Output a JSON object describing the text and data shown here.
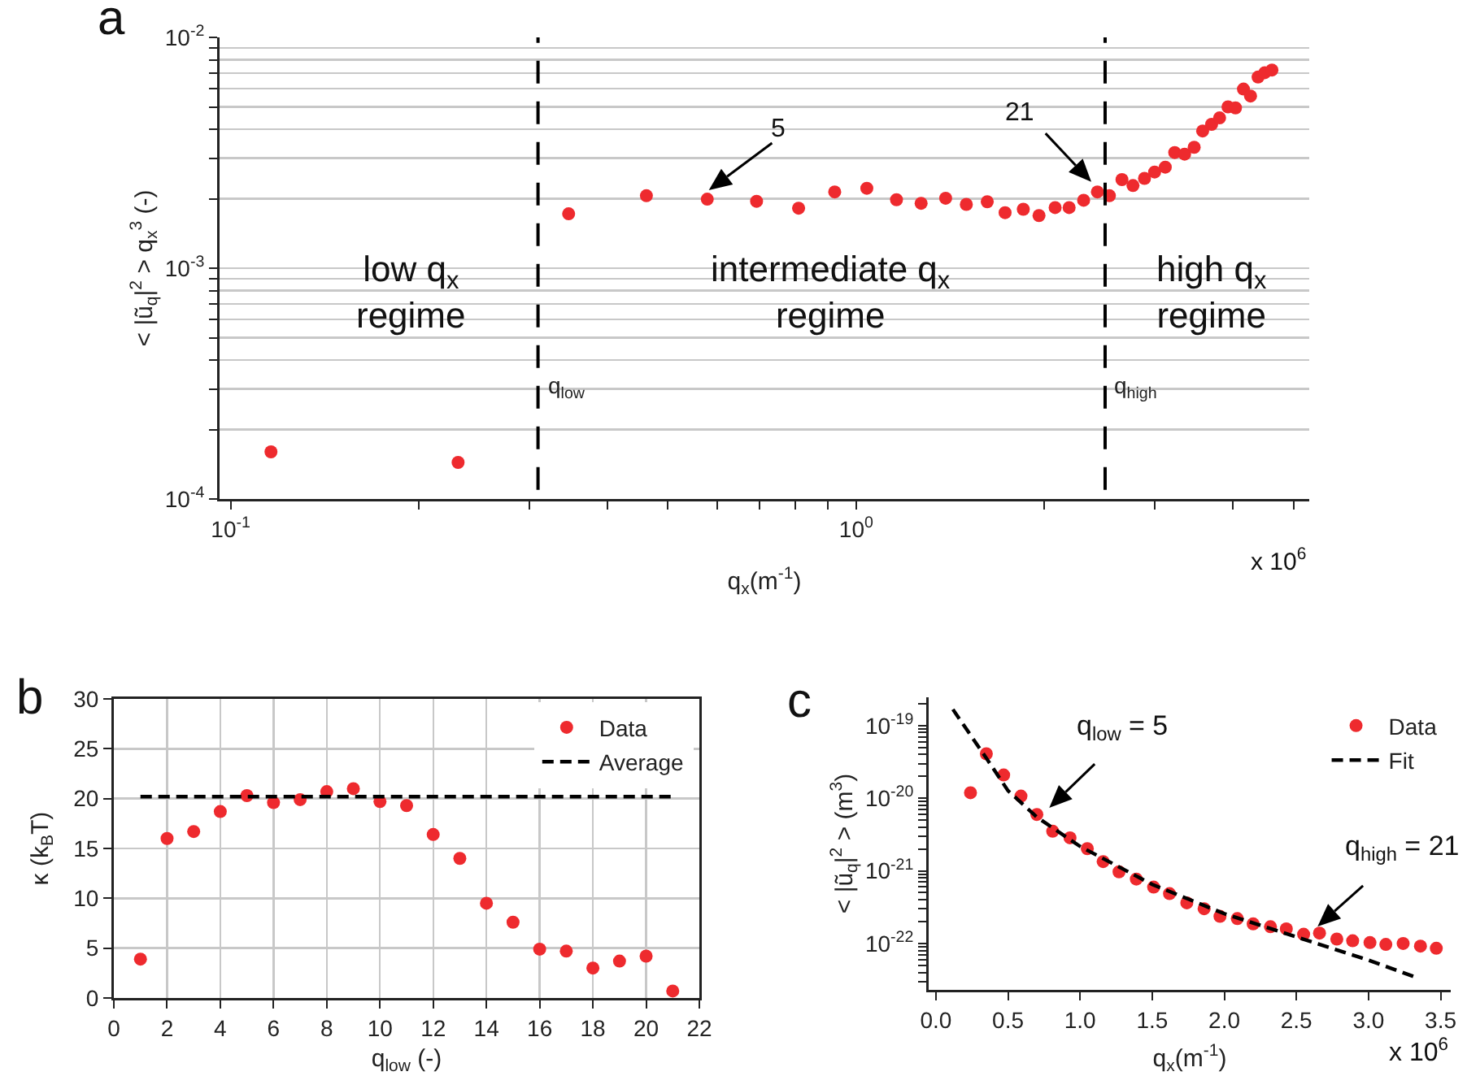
{
  "chart_data": [
    {
      "type": "scatter",
      "title": "a",
      "xlabel": "q$_{x}$(m$^{-1}$)",
      "ylabel": "< |ũ$_{q}$|$^{2}$ > q$_{x}$$^{3}$ (-)",
      "log": "xy",
      "grid": "y",
      "marker": "circle",
      "color": "#ee2a2e",
      "x": [
        0.116,
        0.231,
        0.347,
        0.462,
        0.578,
        0.693,
        0.809,
        0.924,
        1.04,
        1.16,
        1.27,
        1.39,
        1.5,
        1.62,
        1.73,
        1.85,
        1.96,
        2.08,
        2.19,
        2.31,
        2.43,
        2.54,
        2.66,
        2.77,
        2.89,
        3.0,
        3.12,
        3.23,
        3.35,
        3.47,
        3.58,
        3.7,
        3.81,
        3.93,
        4.04,
        4.16,
        4.27,
        4.39,
        4.5,
        4.62
      ],
      "values": [
        0.00016,
        0.000144,
        0.00172,
        0.00206,
        0.00199,
        0.00195,
        0.00182,
        0.00214,
        0.00222,
        0.00198,
        0.00191,
        0.00201,
        0.00189,
        0.00194,
        0.00174,
        0.0018,
        0.00169,
        0.00183,
        0.00183,
        0.00197,
        0.00214,
        0.00206,
        0.00242,
        0.00228,
        0.00245,
        0.00261,
        0.00274,
        0.00317,
        0.00312,
        0.00334,
        0.00393,
        0.0042,
        0.00448,
        0.005,
        0.00495,
        0.00597,
        0.00557,
        0.00673,
        0.00703,
        0.00722
      ],
      "xlim": [
        0.096,
        5.3
      ],
      "xticks": [
        {
          "value": 0.1,
          "label": "10$^{-1}$"
        },
        {
          "value": 0.2,
          "label": null
        },
        {
          "value": 0.3,
          "label": null
        },
        {
          "value": 0.4,
          "label": null
        },
        {
          "value": 0.5,
          "label": null
        },
        {
          "value": 0.6,
          "label": null
        },
        {
          "value": 0.7,
          "label": null
        },
        {
          "value": 0.8,
          "label": null
        },
        {
          "value": 0.9,
          "label": null
        },
        {
          "value": 1,
          "label": "10$^{0}$"
        },
        {
          "value": 2,
          "label": null
        },
        {
          "value": 3,
          "label": null
        },
        {
          "value": 4,
          "label": null
        },
        {
          "value": 5,
          "label": null
        }
      ],
      "ylim": [
        0.0001,
        0.01
      ],
      "yticks": [
        {
          "value": 0.0001,
          "label": "10$^{-4}$"
        },
        {
          "value": 0.0002,
          "label": null
        },
        {
          "value": 0.0003,
          "label": null
        },
        {
          "value": 0.0004,
          "label": null
        },
        {
          "value": 0.0005,
          "label": null
        },
        {
          "value": 0.0006,
          "label": null
        },
        {
          "value": 0.0007,
          "label": null
        },
        {
          "value": 0.0008,
          "label": null
        },
        {
          "value": 0.0009,
          "label": null
        },
        {
          "value": 0.001,
          "label": "10$^{-3}$"
        },
        {
          "value": 0.002,
          "label": null
        },
        {
          "value": 0.003,
          "label": null
        },
        {
          "value": 0.004,
          "label": null
        },
        {
          "value": 0.005,
          "label": null
        },
        {
          "value": 0.006,
          "label": null
        },
        {
          "value": 0.007,
          "label": null
        },
        {
          "value": 0.008,
          "label": null
        },
        {
          "value": 0.009,
          "label": null
        },
        {
          "value": 0.01,
          "label": "10$^{-2}$"
        }
      ],
      "ref_lines": [
        {
          "axis": "x",
          "value": 0.31,
          "label": "q$_{low}$",
          "color": "#000000",
          "line_style": "dashed"
        },
        {
          "axis": "x",
          "value": 2.5,
          "label": "q$_{high}$",
          "color": "#000000",
          "line_style": "dashed"
        }
      ],
      "annotations": [
        "low q$_{x}$\nregime",
        "intermediate q$_{x}$\nregime",
        "high q$_{x}$\nregime",
        "5",
        "21",
        "x 10$^{6}$"
      ]
    },
    {
      "type": "scatter",
      "title": "b",
      "xlabel": "q$_{low}$ (-)",
      "ylabel": "κ (k$_{B}$T)",
      "grid": true,
      "legend": "top right",
      "x": [
        1,
        2,
        3,
        4,
        5,
        6,
        7,
        8,
        9,
        10,
        11,
        12,
        13,
        14,
        15,
        16,
        17,
        18,
        19,
        20,
        21
      ],
      "series": [
        {
          "name": "Data",
          "color": "#ee2a2e",
          "marker": "circle",
          "values": [
            3.9,
            16.0,
            16.7,
            18.7,
            20.3,
            19.6,
            19.9,
            20.7,
            21.0,
            19.7,
            19.3,
            16.4,
            14.0,
            9.5,
            7.6,
            4.9,
            4.7,
            3.0,
            3.7,
            4.2,
            0.7
          ]
        },
        {
          "name": "Average",
          "type": "line",
          "color": "#000000",
          "marker": "none",
          "line_style": "dashed",
          "x": [
            1,
            21
          ],
          "values": [
            20.2,
            20.2
          ]
        }
      ],
      "xlim": [
        0,
        22
      ],
      "xticks": [
        0,
        2,
        4,
        6,
        8,
        10,
        12,
        14,
        16,
        18,
        20,
        22
      ],
      "ylim": [
        0,
        30
      ],
      "yticks": [
        0,
        5,
        10,
        15,
        20,
        25,
        30
      ]
    },
    {
      "type": "scatter",
      "title": "c",
      "xlabel": "q$_{x}$(m$^{-1}$)",
      "ylabel": "< |ũ$_{q}$|$^{2}$ > (m$^{3}$)",
      "log": "y",
      "legend": "top right",
      "x": [
        0.24,
        0.35,
        0.47,
        0.59,
        0.7,
        0.81,
        0.93,
        1.05,
        1.16,
        1.27,
        1.39,
        1.51,
        1.62,
        1.74,
        1.86,
        1.97,
        2.09,
        2.2,
        2.32,
        2.43,
        2.55,
        2.66,
        2.78,
        2.89,
        3.01,
        3.12,
        3.24,
        3.36,
        3.47
      ],
      "series": [
        {
          "name": "Data",
          "color": "#ee2a2e",
          "marker": "circle",
          "values": [
            1.19e-20,
            4.09e-20,
            2.09e-20,
            1.07e-20,
            5.97e-21,
            3.51e-21,
            2.85e-21,
            2.02e-21,
            1.34e-21,
            9.7e-22,
            7.7e-22,
            5.97e-22,
            4.86e-22,
            3.63e-22,
            3.01e-22,
            2.36e-22,
            2.2e-22,
            1.86e-22,
            1.7e-22,
            1.59e-22,
            1.34e-22,
            1.39e-22,
            1.15e-22,
            1.09e-22,
            1.03e-22,
            9.7e-23,
            1e-22,
            9.2e-23,
            8.6e-23
          ]
        },
        {
          "name": "Fit",
          "type": "line",
          "color": "#000000",
          "marker": "none",
          "line_style": "dashed",
          "x": [
            0.118,
            0.35,
            0.5,
            0.7,
            1.0,
            1.5,
            2.0,
            2.5,
            3.0,
            3.35
          ],
          "values": [
            1.67e-19,
            3.56e-20,
            1.27e-20,
            5.5e-21,
            2.17e-21,
            6.5e-22,
            2.57e-22,
            1.23e-22,
            5.9e-23,
            3.3e-23
          ]
        }
      ],
      "xlim": [
        -0.05,
        3.57
      ],
      "xticks": [
        {
          "value": 0,
          "label": "0.0"
        },
        0.5,
        {
          "value": 1,
          "label": "1.0"
        },
        1.5,
        {
          "value": 2,
          "label": "2.0"
        },
        2.5,
        {
          "value": 3,
          "label": "3.0"
        },
        3.5
      ],
      "ylim": [
        2.3e-23,
        2.45e-19
      ],
      "yticks": [
        {
          "value": 3e-23,
          "label": null
        },
        {
          "value": 4e-23,
          "label": null
        },
        {
          "value": 5e-23,
          "label": null
        },
        {
          "value": 6e-23,
          "label": null
        },
        {
          "value": 7e-23,
          "label": null
        },
        {
          "value": 8e-23,
          "label": null
        },
        {
          "value": 9e-23,
          "label": null
        },
        {
          "value": 1e-22,
          "label": "10$^{-22}$"
        },
        {
          "value": 2e-22,
          "label": null
        },
        {
          "value": 3e-22,
          "label": null
        },
        {
          "value": 4e-22,
          "label": null
        },
        {
          "value": 5e-22,
          "label": null
        },
        {
          "value": 6e-22,
          "label": null
        },
        {
          "value": 7e-22,
          "label": null
        },
        {
          "value": 8e-22,
          "label": null
        },
        {
          "value": 9e-22,
          "label": null
        },
        {
          "value": 1e-21,
          "label": "10$^{-21}$"
        },
        {
          "value": 2e-21,
          "label": null
        },
        {
          "value": 3e-21,
          "label": null
        },
        {
          "value": 4e-21,
          "label": null
        },
        {
          "value": 5e-21,
          "label": null
        },
        {
          "value": 6e-21,
          "label": null
        },
        {
          "value": 7e-21,
          "label": null
        },
        {
          "value": 8e-21,
          "label": null
        },
        {
          "value": 9e-21,
          "label": null
        },
        {
          "value": 1e-20,
          "label": "10$^{-20}$"
        },
        {
          "value": 2e-20,
          "label": null
        },
        {
          "value": 3e-20,
          "label": null
        },
        {
          "value": 4e-20,
          "label": null
        },
        {
          "value": 5e-20,
          "label": null
        },
        {
          "value": 6e-20,
          "label": null
        },
        {
          "value": 7e-20,
          "label": null
        },
        {
          "value": 8e-20,
          "label": null
        },
        {
          "value": 9e-20,
          "label": null
        },
        {
          "value": 1e-19,
          "label": "10$^{-19}$"
        },
        {
          "value": 2e-19,
          "label": null
        }
      ],
      "annotations": [
        "q$_{low}$ = 5",
        "q$_{high}$ = 21",
        "x 10$^{6}$"
      ]
    }
  ]
}
